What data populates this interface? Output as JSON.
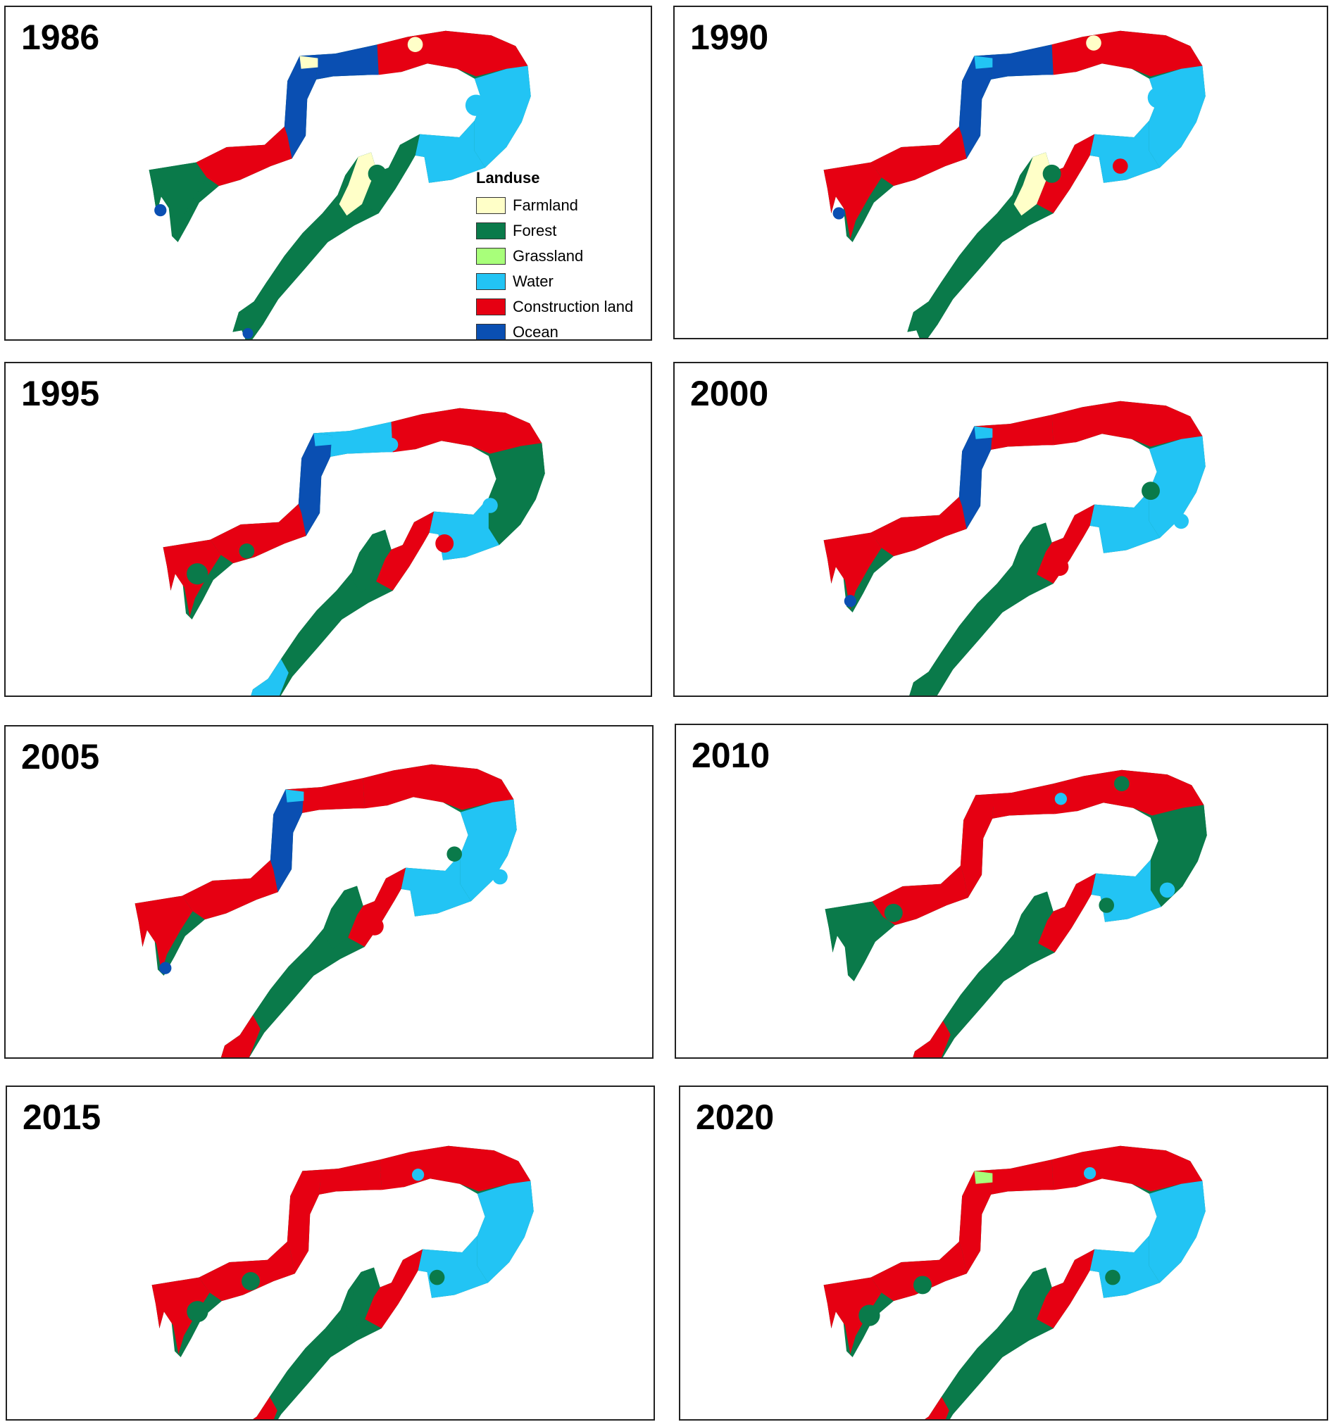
{
  "legend": {
    "title": "Landuse",
    "items": [
      {
        "label": "Farmland",
        "color": "#ffffc8"
      },
      {
        "label": "Forest",
        "color": "#0a7a4a"
      },
      {
        "label": "Grassland",
        "color": "#a8ff7a"
      },
      {
        "label": "Water",
        "color": "#22c4f4"
      },
      {
        "label": "Construction land",
        "color": "#e60012"
      },
      {
        "label": "Ocean",
        "color": "#0a4fb2"
      }
    ]
  },
  "panels": [
    {
      "year": "1986",
      "mix": {
        "ocean": "high",
        "construction": "low",
        "water": "medium"
      }
    },
    {
      "year": "1990",
      "mix": {
        "ocean": "high",
        "construction": "medium",
        "water": "medium"
      }
    },
    {
      "year": "1995",
      "mix": {
        "ocean": "medium",
        "construction": "medium",
        "water": "medium"
      }
    },
    {
      "year": "2000",
      "mix": {
        "ocean": "medium",
        "construction": "high",
        "water": "medium"
      }
    },
    {
      "year": "2005",
      "mix": {
        "ocean": "medium",
        "construction": "high",
        "water": "medium"
      }
    },
    {
      "year": "2010",
      "mix": {
        "ocean": "low",
        "construction": "high",
        "water": "medium"
      }
    },
    {
      "year": "2015",
      "mix": {
        "ocean": "low",
        "construction": "high",
        "water": "low"
      }
    },
    {
      "year": "2020",
      "mix": {
        "ocean": "none",
        "construction": "high",
        "water": "low",
        "grassland": "patch"
      }
    }
  ]
}
